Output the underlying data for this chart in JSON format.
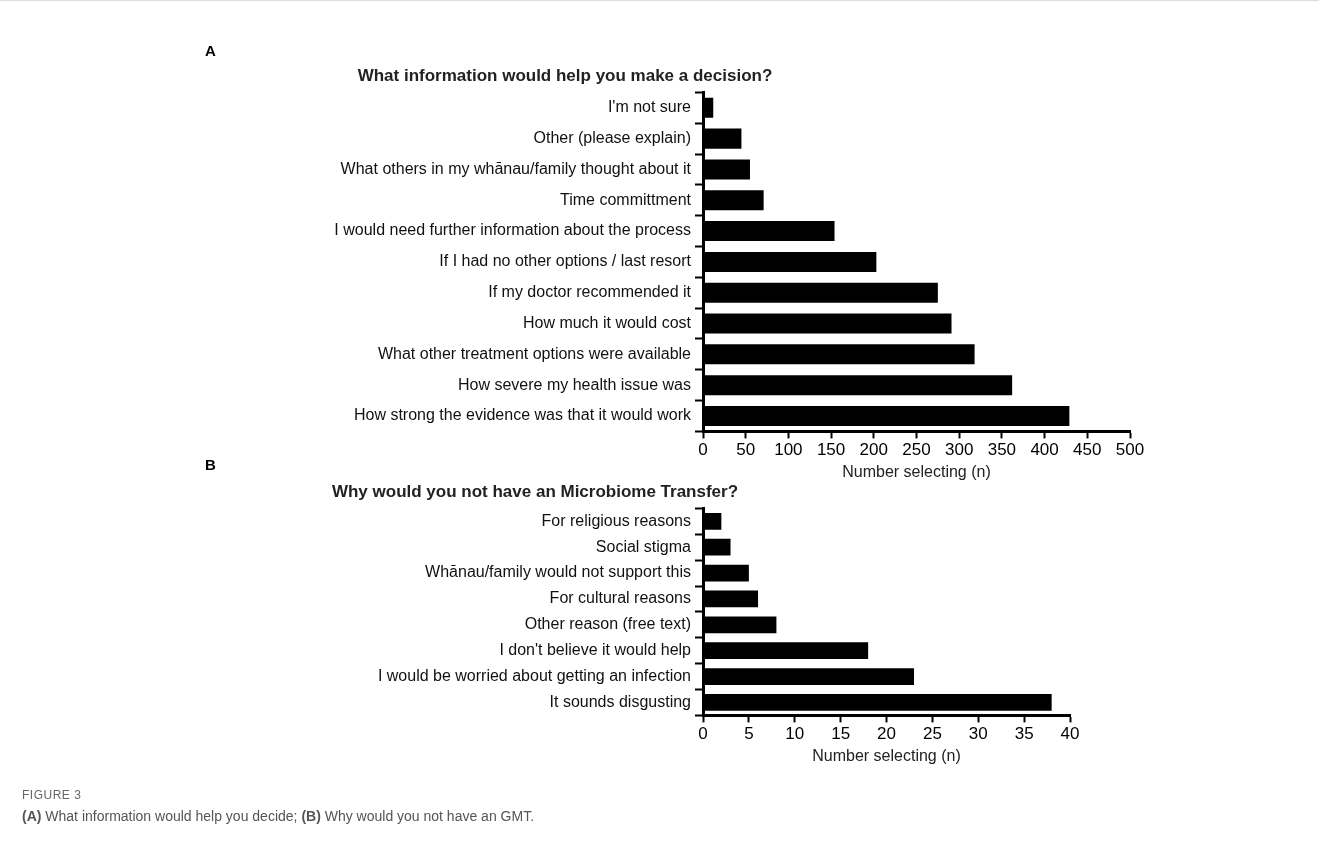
{
  "chart_data": [
    {
      "type": "bar",
      "orientation": "horizontal",
      "title": "What information would help you make a decision?",
      "xlabel": "Number selecting (n)",
      "annotations": [
        "A"
      ],
      "categories": [
        "I'm not sure",
        "Other (please explain)",
        "What others in my whānau/family thought about it",
        "Time committment",
        "I would need further information about the process",
        "If I had no other options / last resort",
        "If my doctor recommended it",
        "How much it would cost",
        "What other treatment options were available",
        "How severe my health issue was",
        "How strong the evidence was that it would work"
      ],
      "series": [
        {
          "color": "#000000",
          "values": [
            12,
            45,
            55,
            71,
            154,
            203,
            275,
            291,
            318,
            362,
            429
          ]
        }
      ],
      "xlim": [
        0,
        500
      ],
      "xticks": [
        0,
        50,
        100,
        150,
        200,
        250,
        300,
        350,
        400,
        450,
        500
      ]
    },
    {
      "type": "bar",
      "orientation": "horizontal",
      "title": "Why would you not have an Microbiome Transfer?",
      "xlabel": "Number selecting (n)",
      "annotations": [
        "B",
        "FIGURE 3",
        "(A) What information would help you decide; (B) Why would you not have an GMT."
      ],
      "categories": [
        "For religious reasons",
        "Social stigma",
        "Whānau/family would not support this",
        "For cultural reasons",
        "Other reason (free text)",
        "I don't believe it would help",
        "I would be worried about getting an infection",
        "It sounds disgusting"
      ],
      "series": [
        {
          "color": "#000000",
          "values": [
            2,
            3,
            5,
            6,
            8,
            18,
            23,
            38
          ]
        }
      ],
      "xlim": [
        0,
        40
      ],
      "xticks": [
        0,
        5,
        10,
        15,
        20,
        25,
        30,
        35,
        40
      ]
    }
  ]
}
